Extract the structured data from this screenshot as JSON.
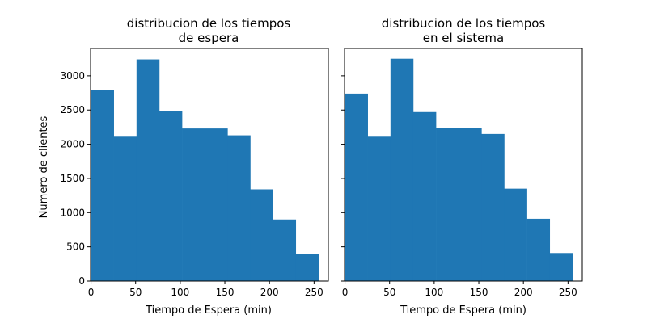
{
  "chart_data": [
    {
      "type": "bar",
      "title_line1": "distribucion de los tiempos",
      "title_line2": "de espera",
      "xlabel": "Tiempo de Espera (min)",
      "ylabel": "Numero de clientes",
      "xlim": [
        -0.5,
        266
      ],
      "ylim": [
        0,
        3400
      ],
      "xticks": [
        0,
        50,
        100,
        150,
        200,
        250
      ],
      "yticks": [
        0,
        500,
        1000,
        1500,
        2000,
        2500,
        3000
      ],
      "bin_edges": [
        0,
        25.5,
        51,
        76.5,
        102,
        127.5,
        153,
        178.5,
        204,
        229.5,
        255
      ],
      "values": [
        2790,
        2110,
        3240,
        2480,
        2230,
        2230,
        2130,
        1340,
        900,
        400
      ],
      "color": "#1f77b4"
    },
    {
      "type": "bar",
      "title_line1": "distribucion de los tiempos",
      "title_line2": "en el sistema",
      "xlabel": "Tiempo de Espera (min)",
      "ylabel": "",
      "xlim": [
        -0.5,
        266
      ],
      "ylim": [
        0,
        3400
      ],
      "xticks": [
        0,
        50,
        100,
        150,
        200,
        250
      ],
      "yticks": [
        0,
        500,
        1000,
        1500,
        2000,
        2500,
        3000
      ],
      "bin_edges": [
        0,
        25.5,
        51,
        76.5,
        102,
        127.5,
        153,
        178.5,
        204,
        229.5,
        255
      ],
      "values": [
        2740,
        2110,
        3250,
        2470,
        2240,
        2240,
        2150,
        1350,
        910,
        410
      ],
      "color": "#1f77b4"
    }
  ]
}
